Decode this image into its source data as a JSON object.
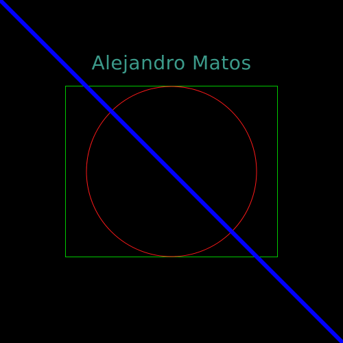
{
  "background_color": "#000000",
  "caption": {
    "text": "Alejandro Matos",
    "color": "#3c9a8a"
  },
  "shapes": {
    "rectangle": {
      "stroke_color": "#00c800"
    },
    "circle": {
      "stroke_color": "#ff1a1a"
    },
    "diagonal_line": {
      "stroke_color": "#0000ff"
    }
  }
}
